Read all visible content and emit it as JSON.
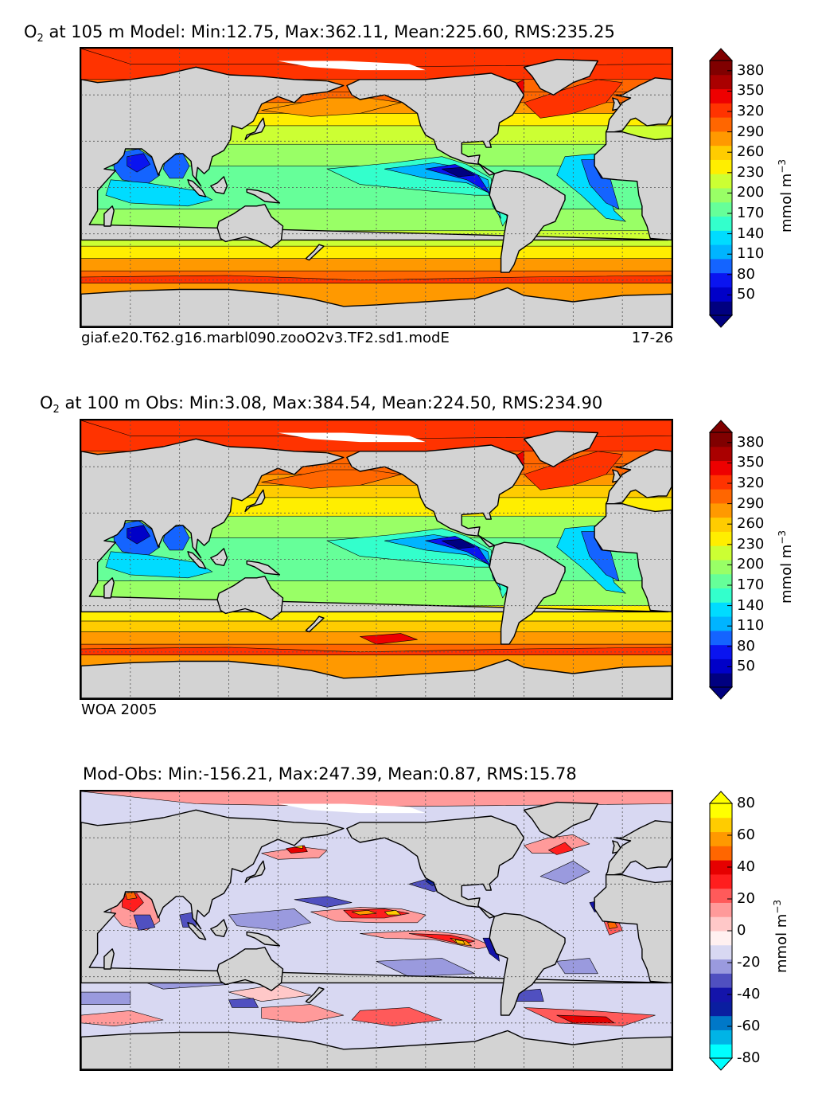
{
  "chart_data": [
    {
      "type": "heatmap",
      "title_prefix": "O",
      "title_sub": "2",
      "title_rest": "  at 105 m Model: Min:12.75, Max:362.11, Mean:225.60, RMS:235.25",
      "stats": {
        "depth_m": 105,
        "min": 12.75,
        "max": 362.11,
        "mean": 225.6,
        "rms": 235.25
      },
      "caption_left": "giaf.e20.T62.g16.marbl090.zooO2v3.TF2.sd1.modE",
      "caption_right": "17-26",
      "colorbar": {
        "ticks": [
          "380",
          "350",
          "320",
          "290",
          "260",
          "230",
          "200",
          "170",
          "140",
          "110",
          "80",
          "50"
        ],
        "unit": "mmol m",
        "unit_sup": "−3",
        "levels": [
          20,
          35,
          50,
          65,
          80,
          95,
          110,
          125,
          140,
          155,
          170,
          185,
          200,
          215,
          230,
          245,
          260,
          275,
          290,
          305,
          320,
          335,
          350,
          365,
          380,
          395
        ],
        "colors": [
          "#000080",
          "#0000c8",
          "#0a14f0",
          "#1464ff",
          "#00b4ff",
          "#00dcff",
          "#33ffcc",
          "#66ff99",
          "#99ff66",
          "#ccff33",
          "#ffee00",
          "#ffcc00",
          "#ff9900",
          "#ff6600",
          "#ff3300",
          "#ee0000",
          "#aa0000",
          "#800000"
        ]
      }
    },
    {
      "type": "heatmap",
      "title_prefix": "O",
      "title_sub": "2",
      "title_rest": "  at 100 m Obs: Min:3.08, Max:384.54, Mean:224.50, RMS:234.90",
      "stats": {
        "depth_m": 100,
        "min": 3.08,
        "max": 384.54,
        "mean": 224.5,
        "rms": 234.9
      },
      "caption_left": "WOA 2005",
      "colorbar": {
        "ticks": [
          "380",
          "350",
          "320",
          "290",
          "260",
          "230",
          "200",
          "170",
          "140",
          "110",
          "80",
          "50"
        ],
        "unit": "mmol m",
        "unit_sup": "−3"
      }
    },
    {
      "type": "heatmap",
      "title_prefix": "",
      "title_sub": "",
      "title_rest": "Mod-Obs: Min:-156.21, Max:247.39, Mean:0.87, RMS:15.78",
      "stats": {
        "min": -156.21,
        "max": 247.39,
        "mean": 0.87,
        "rms": 15.78
      },
      "colorbar": {
        "ticks": [
          "80",
          "60",
          "40",
          "20",
          "0",
          "-20",
          "-40",
          "-60",
          "-80"
        ],
        "unit": "mmol m",
        "unit_sup": "−3",
        "colors": [
          "#00ffff",
          "#00b4e6",
          "#0078c8",
          "#0a1ea0",
          "#1414aa",
          "#5050c0",
          "#9a9ade",
          "#d8d8f2",
          "#fff0f0",
          "#ffc8c8",
          "#ff9a9a",
          "#ff5a5a",
          "#ff1e1e",
          "#e60000",
          "#ff6600",
          "#ff9900",
          "#ffcc00",
          "#ffff00"
        ]
      }
    }
  ],
  "palette": {
    "land": "#d3d3d3",
    "missing": "#ffffff",
    "grid": "#555555"
  }
}
